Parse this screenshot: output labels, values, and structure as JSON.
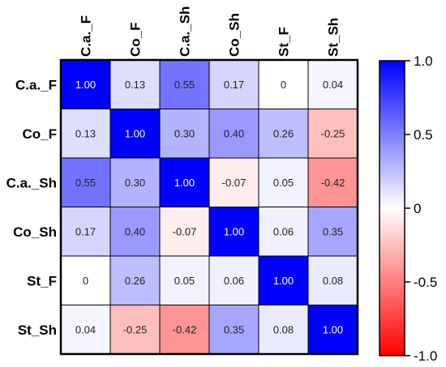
{
  "chart_data": {
    "type": "heatmap",
    "title": "",
    "rows": [
      "C.a._F",
      "Co_F",
      "C.a._Sh",
      "Co_Sh",
      "St_F",
      "St_Sh"
    ],
    "columns": [
      "C.a._F",
      "Co_F",
      "C.a._Sh",
      "Co_Sh",
      "St_F",
      "St_Sh"
    ],
    "values": [
      [
        1.0,
        0.13,
        0.55,
        0.17,
        0,
        0.04
      ],
      [
        0.13,
        1.0,
        0.3,
        0.4,
        0.26,
        -0.25
      ],
      [
        0.55,
        0.3,
        1.0,
        -0.07,
        0.05,
        -0.42
      ],
      [
        0.17,
        0.4,
        -0.07,
        1.0,
        0.06,
        0.35
      ],
      [
        0,
        0.26,
        0.05,
        0.06,
        1.0,
        0.08
      ],
      [
        0.04,
        -0.25,
        -0.42,
        0.35,
        0.08,
        1.0
      ]
    ],
    "value_labels": [
      [
        "1.00",
        "0.13",
        "0.55",
        "0.17",
        "0",
        "0.04"
      ],
      [
        "0.13",
        "1.00",
        "0.30",
        "0.40",
        "0.26",
        "-0.25"
      ],
      [
        "0.55",
        "0.30",
        "1.00",
        "-0.07",
        "0.05",
        "-0.42"
      ],
      [
        "0.17",
        "0.40",
        "-0.07",
        "1.00",
        "0.06",
        "0.35"
      ],
      [
        "0",
        "0.26",
        "0.05",
        "0.06",
        "1.00",
        "0.08"
      ],
      [
        "0.04",
        "-0.25",
        "-0.42",
        "0.35",
        "0.08",
        "1.00"
      ]
    ],
    "colorbar": {
      "range": [
        -1.0,
        1.0
      ],
      "ticks": [
        1.0,
        0.5,
        0,
        -0.5,
        -1.0
      ],
      "tick_labels": [
        "1.0",
        "0.5",
        "0",
        "-0.5",
        "-1.0"
      ],
      "color_max": "#0000ff",
      "color_mid": "#ffffff",
      "color_min": "#ff0000"
    },
    "legend_position": "right",
    "grid": true
  }
}
